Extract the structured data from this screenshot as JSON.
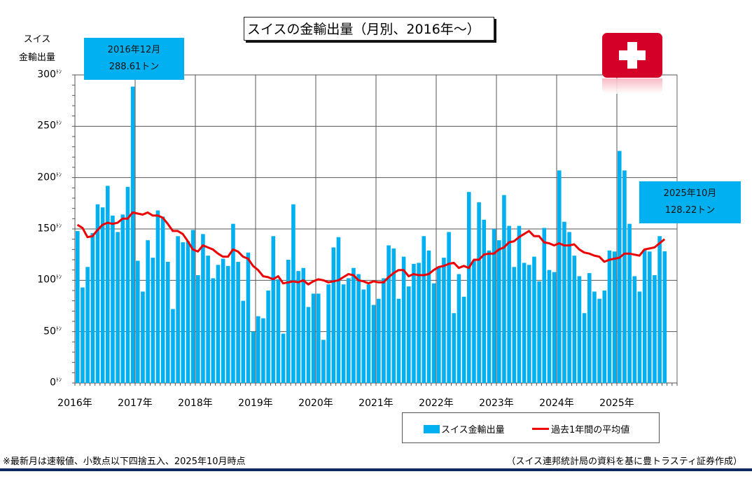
{
  "chart_data": {
    "type": "bar",
    "title": "スイスの金輸出量（月別、2016年～）",
    "ylabel": [
      "スイス",
      "金輸出量"
    ],
    "unit": "ﾄﾝ",
    "ylim": [
      0,
      300
    ],
    "yticks": [
      "0",
      "50",
      "100",
      "150",
      "200",
      "250",
      "300"
    ],
    "xtick_labels": [
      "2016年",
      "2017年",
      "2018年",
      "2019年",
      "2020年",
      "2021年",
      "2022年",
      "2023年",
      "2024年",
      "2025年"
    ],
    "start": "2016-01",
    "grid": true,
    "legend_position": "bottom-right",
    "series": [
      {
        "name": "スイス金輸出量",
        "type": "bar",
        "color": "#00b0f0",
        "values": [
          148,
          93,
          113,
          146,
          174,
          171,
          192,
          163,
          147,
          164,
          191,
          288.61,
          119,
          89,
          139,
          122,
          168,
          162,
          118,
          72,
          143,
          137,
          138,
          149,
          105,
          145,
          124,
          102,
          115,
          121,
          114,
          155,
          118,
          80,
          127,
          50,
          65,
          63,
          90,
          143,
          101,
          48,
          120,
          174,
          109,
          112,
          74,
          87,
          87,
          42,
          96,
          132,
          142,
          96,
          102,
          112,
          106,
          91,
          96,
          76,
          82,
          102,
          134,
          131,
          82,
          123,
          94,
          116,
          117,
          143,
          129,
          97,
          113,
          122,
          147,
          68,
          106,
          84,
          186,
          119,
          176,
          159,
          129,
          150,
          139,
          183,
          153,
          113,
          153,
          117,
          115,
          123,
          99,
          151,
          110,
          108,
          207,
          157,
          147,
          124,
          104,
          68,
          107,
          89,
          82,
          90,
          129,
          128,
          226,
          207,
          155,
          104,
          89,
          130,
          128,
          105,
          143,
          128.22
        ]
      },
      {
        "name": "過去1年間の平均値",
        "type": "line",
        "color": "#ee0000",
        "values": [
          154,
          151,
          142,
          143,
          149,
          154,
          156,
          155,
          156,
          160,
          160,
          166,
          165,
          164,
          166,
          163,
          163,
          161,
          155,
          148,
          148,
          145,
          138,
          130,
          128,
          134,
          132,
          130,
          126,
          123,
          123,
          130,
          128,
          123,
          121,
          114,
          110,
          104,
          103,
          101,
          104,
          97,
          98,
          99,
          98,
          100,
          96,
          99,
          101,
          100,
          98,
          99,
          100,
          103,
          106,
          105,
          100,
          99,
          97,
          99,
          98,
          98,
          103,
          107,
          110,
          110,
          104,
          106,
          105,
          105,
          106,
          110,
          113,
          114,
          116,
          117,
          112,
          114,
          112,
          120,
          120,
          125,
          126,
          126,
          130,
          132,
          137,
          138,
          142,
          145,
          148,
          143,
          143,
          137,
          136,
          134,
          136,
          134,
          134,
          135,
          130,
          127,
          126,
          124,
          123,
          118,
          120,
          121,
          122,
          126,
          126,
          125,
          124,
          130,
          131,
          132,
          136,
          140
        ]
      }
    ],
    "annotations": [
      {
        "date": "2016年12月",
        "value": "288.61トン"
      },
      {
        "date": "2025年10月",
        "value": "128.22トン"
      }
    ]
  },
  "footer": {
    "note": "※最新月は速報値、小数点以下四捨五入、2025年10月時点",
    "source": "（スイス連邦統計局の資料を基に豊トラスティ証券作成）"
  },
  "flag": {
    "name": "swiss-flag",
    "color": "#d50027"
  }
}
